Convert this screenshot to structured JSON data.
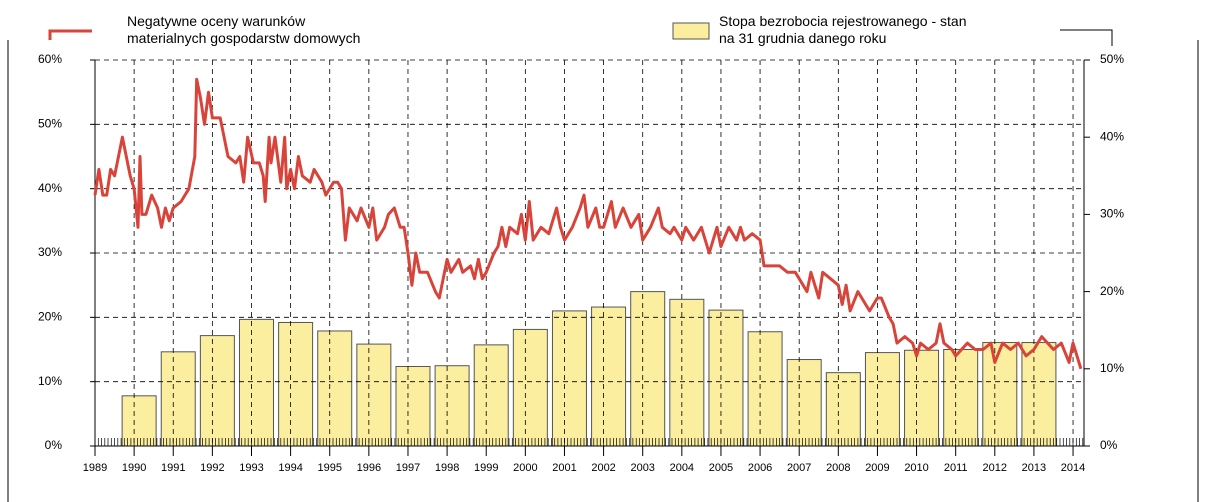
{
  "chart_data": {
    "type": "bar_line",
    "series": [
      {
        "name": "Stopa bezrobocia rejestrowanego - stan\nna 31 grudnia danego roku",
        "type": "bar",
        "axis": "y2",
        "color": "#fbee9e",
        "x": [
          1990,
          1991,
          1992,
          1993,
          1994,
          1995,
          1996,
          1997,
          1998,
          1999,
          2000,
          2001,
          2002,
          2003,
          2004,
          2005,
          2006,
          2007,
          2008,
          2009,
          2010,
          2011,
          2012,
          2013
        ],
        "values": [
          6.5,
          12.2,
          14.3,
          16.4,
          16.0,
          14.9,
          13.2,
          10.3,
          10.4,
          13.1,
          15.1,
          17.5,
          18.0,
          20.0,
          19.0,
          17.6,
          14.8,
          11.2,
          9.5,
          12.1,
          12.4,
          12.5,
          13.4,
          13.4
        ]
      },
      {
        "name": "Negatywne oceny warunków\nmaterialnych gospodarstw domowych",
        "type": "line",
        "axis": "y",
        "color": "#d9443a",
        "x": [
          1989.0,
          1989.1,
          1989.2,
          1989.3,
          1989.4,
          1989.5,
          1989.7,
          1989.9,
          1990.0,
          1990.1,
          1990.15,
          1990.2,
          1990.3,
          1990.45,
          1990.6,
          1990.7,
          1990.8,
          1990.9,
          1991.0,
          1991.2,
          1991.4,
          1991.55,
          1991.6,
          1991.7,
          1991.8,
          1991.9,
          1992.0,
          1992.2,
          1992.4,
          1992.6,
          1992.7,
          1992.8,
          1992.9,
          1993.05,
          1993.2,
          1993.3,
          1993.35,
          1993.45,
          1993.5,
          1993.6,
          1993.75,
          1993.85,
          1993.9,
          1994.0,
          1994.1,
          1994.2,
          1994.3,
          1994.5,
          1994.6,
          1994.8,
          1994.9,
          1995.1,
          1995.2,
          1995.3,
          1995.4,
          1995.5,
          1995.7,
          1995.8,
          1996.0,
          1996.1,
          1996.2,
          1996.4,
          1996.5,
          1996.65,
          1996.8,
          1996.9,
          1997.0,
          1997.1,
          1997.2,
          1997.3,
          1997.5,
          1997.7,
          1997.8,
          1997.9,
          1998.0,
          1998.1,
          1998.3,
          1998.4,
          1998.6,
          1998.7,
          1998.8,
          1998.9,
          1999.0,
          1999.2,
          1999.3,
          1999.4,
          1999.5,
          1999.6,
          1999.8,
          1999.9,
          2000.0,
          2000.1,
          2000.2,
          2000.4,
          2000.6,
          2000.8,
          2000.9,
          2001.0,
          2001.2,
          2001.4,
          2001.5,
          2001.6,
          2001.8,
          2001.9,
          2002.0,
          2002.2,
          2002.3,
          2002.5,
          2002.7,
          2002.9,
          2003.0,
          2003.2,
          2003.4,
          2003.5,
          2003.7,
          2003.8,
          2004.0,
          2004.1,
          2004.3,
          2004.5,
          2004.7,
          2004.9,
          2005.0,
          2005.2,
          2005.4,
          2005.5,
          2005.6,
          2005.8,
          2006.0,
          2006.1,
          2006.3,
          2006.5,
          2006.7,
          2006.9,
          2007.0,
          2007.2,
          2007.3,
          2007.5,
          2007.6,
          2007.8,
          2008.0,
          2008.1,
          2008.2,
          2008.3,
          2008.5,
          2008.7,
          2008.8,
          2009.0,
          2009.1,
          2009.3,
          2009.4,
          2009.5,
          2009.7,
          2009.9,
          2010.0,
          2010.1,
          2010.3,
          2010.5,
          2010.6,
          2010.7,
          2010.9,
          2011.0,
          2011.3,
          2011.5,
          2011.7,
          2011.9,
          2012.0,
          2012.2,
          2012.4,
          2012.6,
          2012.8,
          2013.0,
          2013.2,
          2013.5,
          2013.7,
          2013.9,
          2014.0,
          2014.1,
          2014.2
        ],
        "values": [
          39,
          43,
          39,
          39,
          43,
          42,
          48,
          42,
          40,
          34,
          45,
          36,
          36,
          39,
          37,
          34,
          37,
          35,
          37,
          38,
          40,
          45,
          57,
          54,
          50,
          55,
          51,
          51,
          45,
          44,
          45,
          41,
          48,
          44,
          44,
          42,
          38,
          48,
          44,
          48,
          41,
          48,
          40,
          43,
          40,
          45,
          42,
          41,
          43,
          41,
          39,
          41,
          41,
          40,
          32,
          37,
          35,
          37,
          34,
          37,
          32,
          34,
          36,
          37,
          34,
          34,
          30,
          25,
          30,
          27,
          27,
          24,
          23,
          26,
          29,
          27,
          29,
          27,
          28,
          26,
          29,
          26,
          27,
          30,
          31,
          34,
          31,
          34,
          33,
          36,
          32,
          38,
          32,
          34,
          33,
          37,
          34,
          32,
          34,
          37,
          39,
          34,
          37,
          34,
          34,
          38,
          34,
          37,
          34,
          36,
          32,
          34,
          37,
          34,
          33,
          34,
          32,
          34,
          32,
          34,
          30,
          34,
          31,
          34,
          32,
          34,
          32,
          33,
          32,
          28,
          28,
          28,
          27,
          27,
          26,
          24,
          27,
          23,
          27,
          26,
          25,
          22,
          25,
          21,
          24,
          22,
          21,
          23,
          23,
          20,
          19,
          16,
          17,
          16,
          14,
          16,
          15,
          16,
          19,
          16,
          15,
          14,
          16,
          15,
          15,
          16,
          13,
          16,
          15,
          16,
          14,
          15,
          17,
          15,
          16,
          13,
          16,
          14,
          12
        ]
      }
    ],
    "xlim": [
      1989,
      2014.28
    ],
    "xticks": [
      1989,
      1990,
      1991,
      1992,
      1993,
      1994,
      1995,
      1996,
      1997,
      1998,
      1999,
      2000,
      2001,
      2002,
      2003,
      2004,
      2005,
      2006,
      2007,
      2008,
      2009,
      2010,
      2011,
      2012,
      2013,
      2014
    ],
    "ylim": [
      0,
      60
    ],
    "yticks": [
      {
        "value": 0,
        "label": "0%"
      },
      {
        "value": 10,
        "label": "10%"
      },
      {
        "value": 20,
        "label": "20%"
      },
      {
        "value": 30,
        "label": "30%"
      },
      {
        "value": 40,
        "label": "40%"
      },
      {
        "value": 50,
        "label": "50%"
      },
      {
        "value": 60,
        "label": "60%"
      }
    ],
    "y2lim": [
      0,
      50
    ],
    "y2ticks": [
      {
        "value": 0,
        "label": "0%"
      },
      {
        "value": 10,
        "label": "10%"
      },
      {
        "value": 20,
        "label": "20%"
      },
      {
        "value": 30,
        "label": "30%"
      },
      {
        "value": 40,
        "label": "40%"
      },
      {
        "value": 50,
        "label": "50%"
      }
    ],
    "grid": true
  }
}
